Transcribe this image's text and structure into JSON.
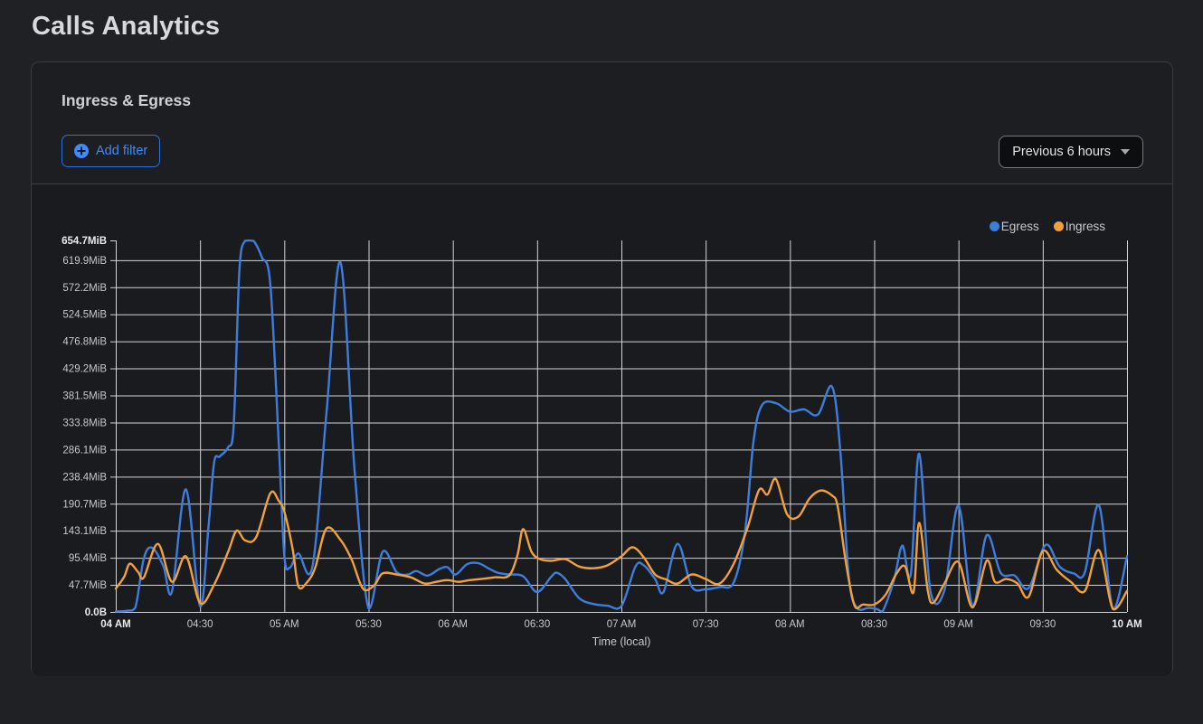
{
  "page": {
    "title": "Calls Analytics"
  },
  "panel": {
    "title": "Ingress & Egress",
    "add_filter_label": "Add filter",
    "time_range_label": "Previous 6 hours"
  },
  "colors": {
    "accent_blue": "#3d8bfd",
    "egress_line": "#3e7ddc",
    "ingress_line": "#f0a13c",
    "gridline": "#d4d4d4",
    "tick_label": "#c6c7c9",
    "tick_label_bold": "#e9eaeb"
  },
  "chart_data": {
    "type": "line",
    "title": "Ingress & Egress",
    "xlabel": "Time (local)",
    "ylabel": "",
    "x_unit": "minutes after 04:00 AM local",
    "xlim": [
      0,
      360
    ],
    "ylim": [
      0,
      654.7
    ],
    "grid": true,
    "legend_position": "top-right",
    "x_ticks": [
      {
        "t": 0,
        "label": "04 AM",
        "bold": true
      },
      {
        "t": 30,
        "label": "04:30"
      },
      {
        "t": 60,
        "label": "05 AM"
      },
      {
        "t": 90,
        "label": "05:30"
      },
      {
        "t": 120,
        "label": "06 AM"
      },
      {
        "t": 150,
        "label": "06:30"
      },
      {
        "t": 180,
        "label": "07 AM"
      },
      {
        "t": 210,
        "label": "07:30"
      },
      {
        "t": 240,
        "label": "08 AM"
      },
      {
        "t": 270,
        "label": "08:30"
      },
      {
        "t": 300,
        "label": "09 AM"
      },
      {
        "t": 330,
        "label": "09:30"
      },
      {
        "t": 360,
        "label": "10 AM",
        "bold": true
      }
    ],
    "y_ticks": [
      {
        "v": 0,
        "label": "0.0B",
        "bold": true
      },
      {
        "v": 47.7,
        "label": "47.7MiB"
      },
      {
        "v": 95.4,
        "label": "95.4MiB"
      },
      {
        "v": 143.1,
        "label": "143.1MiB"
      },
      {
        "v": 190.7,
        "label": "190.7MiB"
      },
      {
        "v": 238.4,
        "label": "238.4MiB"
      },
      {
        "v": 286.1,
        "label": "286.1MiB"
      },
      {
        "v": 333.8,
        "label": "333.8MiB"
      },
      {
        "v": 381.5,
        "label": "381.5MiB"
      },
      {
        "v": 429.2,
        "label": "429.2MiB"
      },
      {
        "v": 476.8,
        "label": "476.8MiB"
      },
      {
        "v": 524.5,
        "label": "524.5MiB"
      },
      {
        "v": 572.2,
        "label": "572.2MiB"
      },
      {
        "v": 619.9,
        "label": "619.9MiB"
      },
      {
        "v": 654.7,
        "label": "654.7MiB",
        "bold": true
      }
    ],
    "series": [
      {
        "name": "Egress",
        "color": "#3e7ddc",
        "unit": "MiB",
        "points": [
          [
            0,
            1
          ],
          [
            4,
            2
          ],
          [
            7,
            8
          ],
          [
            10,
            95
          ],
          [
            13,
            113
          ],
          [
            17,
            80
          ],
          [
            20,
            36
          ],
          [
            25,
            216
          ],
          [
            30,
            10
          ],
          [
            33,
            150
          ],
          [
            35,
            263
          ],
          [
            37,
            274
          ],
          [
            40,
            290
          ],
          [
            42,
            330
          ],
          [
            44,
            600
          ],
          [
            46,
            654
          ],
          [
            49,
            654
          ],
          [
            52,
            625
          ],
          [
            55,
            578
          ],
          [
            58,
            300
          ],
          [
            60,
            100
          ],
          [
            62,
            78
          ],
          [
            65,
            103
          ],
          [
            70,
            80
          ],
          [
            75,
            350
          ],
          [
            80,
            616
          ],
          [
            85,
            250
          ],
          [
            90,
            6
          ],
          [
            95,
            106
          ],
          [
            100,
            70
          ],
          [
            104,
            66
          ],
          [
            107,
            72
          ],
          [
            111,
            64
          ],
          [
            115,
            75
          ],
          [
            118,
            79
          ],
          [
            121,
            66
          ],
          [
            125,
            84
          ],
          [
            129,
            86
          ],
          [
            133,
            76
          ],
          [
            136,
            69
          ],
          [
            140,
            66
          ],
          [
            145,
            63
          ],
          [
            150,
            35
          ],
          [
            155,
            62
          ],
          [
            157,
            69
          ],
          [
            160,
            58
          ],
          [
            165,
            24
          ],
          [
            170,
            14
          ],
          [
            175,
            11
          ],
          [
            180,
            10
          ],
          [
            185,
            80
          ],
          [
            188,
            82
          ],
          [
            192,
            58
          ],
          [
            195,
            35
          ],
          [
            200,
            120
          ],
          [
            205,
            45
          ],
          [
            210,
            40
          ],
          [
            215,
            44
          ],
          [
            220,
            52
          ],
          [
            224,
            140
          ],
          [
            227,
            300
          ],
          [
            230,
            364
          ],
          [
            235,
            368
          ],
          [
            240,
            353
          ],
          [
            245,
            357
          ],
          [
            250,
            348
          ],
          [
            255,
            397
          ],
          [
            258,
            280
          ],
          [
            261,
            60
          ],
          [
            264,
            6
          ],
          [
            268,
            7
          ],
          [
            271,
            5
          ],
          [
            273,
            1
          ],
          [
            277,
            55
          ],
          [
            280,
            117
          ],
          [
            283,
            66
          ],
          [
            286,
            279
          ],
          [
            290,
            37
          ],
          [
            295,
            38
          ],
          [
            300,
            187
          ],
          [
            305,
            11
          ],
          [
            310,
            135
          ],
          [
            315,
            69
          ],
          [
            320,
            64
          ],
          [
            325,
            42
          ],
          [
            331,
            118
          ],
          [
            336,
            80
          ],
          [
            341,
            68
          ],
          [
            345,
            70
          ],
          [
            350,
            188
          ],
          [
            355,
            5
          ],
          [
            360,
            98
          ]
        ]
      },
      {
        "name": "Ingress",
        "color": "#f0a13c",
        "unit": "MiB",
        "points": [
          [
            0,
            41
          ],
          [
            3,
            62
          ],
          [
            5,
            85
          ],
          [
            8,
            70
          ],
          [
            10,
            61
          ],
          [
            15,
            120
          ],
          [
            20,
            53
          ],
          [
            25,
            98
          ],
          [
            30,
            16
          ],
          [
            35,
            48
          ],
          [
            40,
            106
          ],
          [
            43,
            143
          ],
          [
            46,
            126
          ],
          [
            50,
            132
          ],
          [
            55,
            209
          ],
          [
            58,
            196
          ],
          [
            60,
            177
          ],
          [
            63,
            110
          ],
          [
            65,
            45
          ],
          [
            68,
            52
          ],
          [
            71,
            78
          ],
          [
            75,
            147
          ],
          [
            80,
            127
          ],
          [
            84,
            92
          ],
          [
            88,
            41
          ],
          [
            92,
            47
          ],
          [
            95,
            68
          ],
          [
            100,
            66
          ],
          [
            105,
            61
          ],
          [
            110,
            50
          ],
          [
            114,
            53
          ],
          [
            118,
            56
          ],
          [
            122,
            53
          ],
          [
            126,
            56
          ],
          [
            130,
            58
          ],
          [
            135,
            61
          ],
          [
            140,
            64
          ],
          [
            143,
            100
          ],
          [
            145,
            146
          ],
          [
            148,
            106
          ],
          [
            151,
            93
          ],
          [
            155,
            90
          ],
          [
            160,
            93
          ],
          [
            165,
            80
          ],
          [
            170,
            77
          ],
          [
            175,
            82
          ],
          [
            180,
            98
          ],
          [
            184,
            114
          ],
          [
            188,
            96
          ],
          [
            192,
            66
          ],
          [
            196,
            57
          ],
          [
            200,
            50
          ],
          [
            205,
            66
          ],
          [
            210,
            58
          ],
          [
            215,
            50
          ],
          [
            220,
            85
          ],
          [
            225,
            150
          ],
          [
            229,
            215
          ],
          [
            232,
            207
          ],
          [
            235,
            234
          ],
          [
            239,
            172
          ],
          [
            243,
            168
          ],
          [
            247,
            200
          ],
          [
            251,
            214
          ],
          [
            255,
            205
          ],
          [
            257,
            186
          ],
          [
            260,
            85
          ],
          [
            263,
            11
          ],
          [
            266,
            13
          ],
          [
            270,
            13
          ],
          [
            274,
            30
          ],
          [
            278,
            68
          ],
          [
            281,
            80
          ],
          [
            284,
            35
          ],
          [
            286,
            157
          ],
          [
            289,
            40
          ],
          [
            291,
            16
          ],
          [
            295,
            50
          ],
          [
            300,
            88
          ],
          [
            305,
            8
          ],
          [
            310,
            90
          ],
          [
            313,
            53
          ],
          [
            317,
            58
          ],
          [
            321,
            50
          ],
          [
            325,
            27
          ],
          [
            330,
            107
          ],
          [
            335,
            74
          ],
          [
            340,
            53
          ],
          [
            345,
            37
          ],
          [
            350,
            109
          ],
          [
            355,
            5
          ],
          [
            360,
            37
          ]
        ]
      }
    ]
  }
}
